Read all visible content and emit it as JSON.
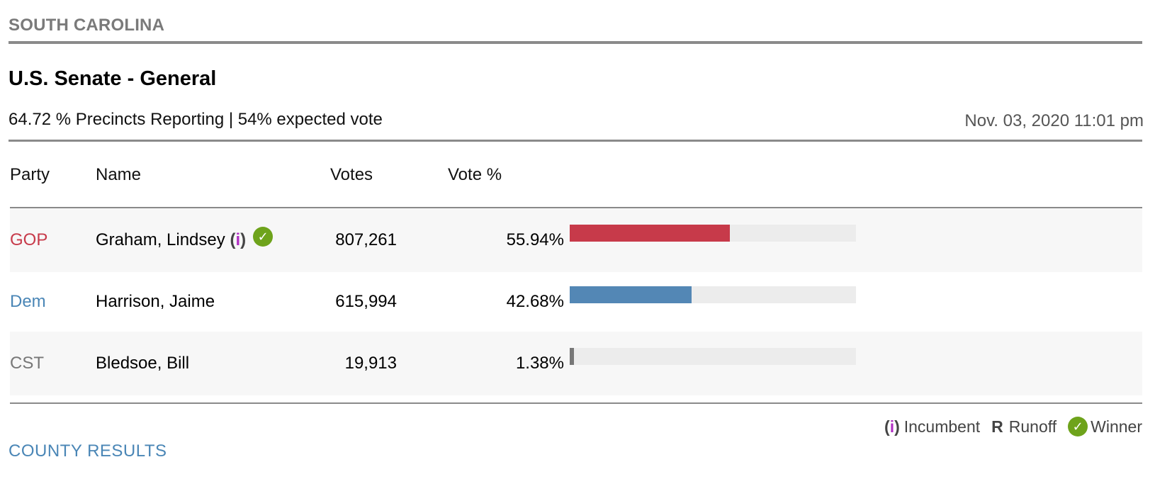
{
  "state": "SOUTH CAROLINA",
  "race": {
    "title": "U.S. Senate - General",
    "reporting": "64.72 % Precincts Reporting | 54% expected vote",
    "timestamp": "Nov. 03, 2020 11:01 pm"
  },
  "table": {
    "headers": {
      "party": "Party",
      "name": "Name",
      "votes": "Votes",
      "vote_pct": "Vote %"
    },
    "rows": [
      {
        "party": "GOP",
        "party_color": "#c73a4a",
        "name": "Graham, Lindsey",
        "incumbent_open": "(",
        "incumbent_i": "i",
        "incumbent_close": ")",
        "incumbent": true,
        "winner": true,
        "votes": "807,261",
        "vote_pct": "55.94%",
        "fraction": 0.5594,
        "bar_color": "#c73a4a"
      },
      {
        "party": "Dem",
        "party_color": "#4a86b6",
        "name": "Harrison, Jaime",
        "incumbent": false,
        "winner": false,
        "votes": "615,994",
        "vote_pct": "42.68%",
        "fraction": 0.4268,
        "bar_color": "#5387b5"
      },
      {
        "party": "CST",
        "party_color": "#777777",
        "name": "Bledsoe, Bill",
        "incumbent": false,
        "winner": false,
        "votes": "19,913",
        "vote_pct": "1.38%",
        "fraction": 0.0138,
        "bar_color": "#777777"
      }
    ]
  },
  "legend": {
    "incumbent_open": "(",
    "incumbent_i": "i",
    "incumbent_close": ")",
    "incumbent_label": "Incumbent",
    "runoff_glyph": "R",
    "runoff_label": "Runoff",
    "winner_label": "Winner",
    "winner_color": "#6ea31b"
  },
  "links": {
    "county_results": "COUNTY RESULTS"
  }
}
